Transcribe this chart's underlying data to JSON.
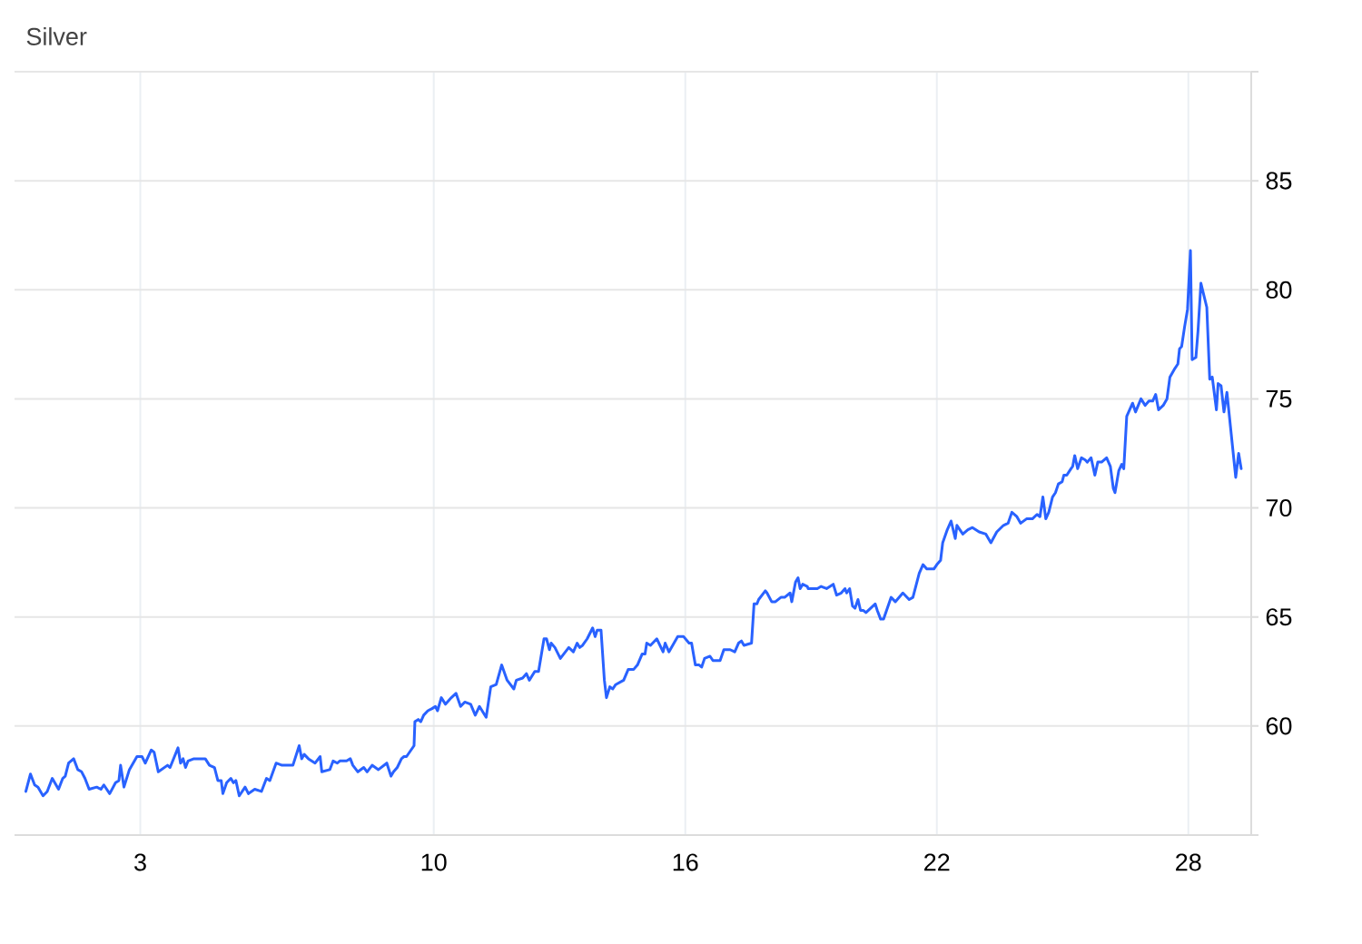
{
  "chart_data": {
    "type": "line",
    "title": "Silver",
    "color": "#2962ff",
    "grid": true,
    "xlim": [
      0,
      29.5
    ],
    "xticks": [
      3,
      10,
      16,
      22,
      28
    ],
    "ylim": [
      55,
      90
    ],
    "yticks": [
      {
        "value": 55,
        "label": null
      },
      60,
      65,
      70,
      75,
      80,
      85,
      {
        "value": 90,
        "label": null
      }
    ],
    "x": [
      0.27,
      0.38,
      0.48,
      0.56,
      0.68,
      0.78,
      0.9,
      1.05,
      1.15,
      1.21,
      1.29,
      1.41,
      1.51,
      1.6,
      1.68,
      1.78,
      1.96,
      2.06,
      2.13,
      2.27,
      2.41,
      2.49,
      2.53,
      2.61,
      2.74,
      2.92,
      3.04,
      3.12,
      3.26,
      3.33,
      3.43,
      3.65,
      3.71,
      3.9,
      3.96,
      4.02,
      4.08,
      4.14,
      4.28,
      4.55,
      4.65,
      4.77,
      4.85,
      4.93,
      4.97,
      5.06,
      5.16,
      5.22,
      5.28,
      5.36,
      5.5,
      5.58,
      5.73,
      5.89,
      6.01,
      6.09,
      6.24,
      6.38,
      6.64,
      6.79,
      6.85,
      6.91,
      7.01,
      7.17,
      7.29,
      7.33,
      7.52,
      7.6,
      7.7,
      7.76,
      7.84,
      7.92,
      8.01,
      8.07,
      8.19,
      8.33,
      8.41,
      8.53,
      8.68,
      8.88,
      8.98,
      9.04,
      9.13,
      9.23,
      9.29,
      9.35,
      9.53,
      9.55,
      9.63,
      9.69,
      9.76,
      9.86,
      9.96,
      10.04,
      10.09,
      10.18,
      10.28,
      10.42,
      10.53,
      10.64,
      10.74,
      10.88,
      10.99,
      11.09,
      11.25,
      11.36,
      11.49,
      11.62,
      11.75,
      11.91,
      11.97,
      12.12,
      12.21,
      12.28,
      12.41,
      12.5,
      12.63,
      12.69,
      12.76,
      12.8,
      12.89,
      13.02,
      13.22,
      13.33,
      13.42,
      13.48,
      13.55,
      13.66,
      13.79,
      13.85,
      13.9,
      13.99,
      14.07,
      14.12,
      14.2,
      14.27,
      14.34,
      14.53,
      14.64,
      14.77,
      14.86,
      14.97,
      15.04,
      15.08,
      15.17,
      15.32,
      15.47,
      15.52,
      15.61,
      15.82,
      15.96,
      16.09,
      16.15,
      16.24,
      16.33,
      16.39,
      16.46,
      16.59,
      16.66,
      16.83,
      16.92,
      17.01,
      17.07,
      17.18,
      17.27,
      17.34,
      17.4,
      17.58,
      17.64,
      17.71,
      17.75,
      17.91,
      17.95,
      18.06,
      18.15,
      18.28,
      18.37,
      18.5,
      18.54,
      18.63,
      18.69,
      18.74,
      18.8,
      18.91,
      18.93,
      19.04,
      19.15,
      19.24,
      19.37,
      19.53,
      19.61,
      19.72,
      19.81,
      19.85,
      19.92,
      19.99,
      20.05,
      20.12,
      20.18,
      20.25,
      20.31,
      20.42,
      20.53,
      20.58,
      20.66,
      20.73,
      20.91,
      21.01,
      21.19,
      21.34,
      21.43,
      21.58,
      21.67,
      21.76,
      21.93,
      22.0,
      22.09,
      22.14,
      22.25,
      22.34,
      22.44,
      22.48,
      22.62,
      22.74,
      22.85,
      23.01,
      23.17,
      23.29,
      23.43,
      23.59,
      23.7,
      23.79,
      23.91,
      24.0,
      24.14,
      24.28,
      24.39,
      24.46,
      24.53,
      24.6,
      24.67,
      24.76,
      24.83,
      24.9,
      24.99,
      25.03,
      25.1,
      25.2,
      25.24,
      25.29,
      25.36,
      25.45,
      25.54,
      25.59,
      25.68,
      25.77,
      25.84,
      25.93,
      26.05,
      26.14,
      26.21,
      26.25,
      26.34,
      26.41,
      26.46,
      26.53,
      26.6,
      26.67,
      26.74,
      26.87,
      26.97,
      27.06,
      27.15,
      27.22,
      27.29,
      27.4,
      27.49,
      27.56,
      27.68,
      27.75,
      27.79,
      27.84,
      27.91,
      27.98,
      28.05,
      28.09,
      28.18,
      28.23,
      28.3,
      28.44,
      28.51,
      28.57,
      28.67,
      28.71,
      28.78,
      28.85,
      28.92,
      29.13,
      29.2,
      29.26
    ],
    "values": [
      57.0,
      57.8,
      57.3,
      57.2,
      56.8,
      57.0,
      57.6,
      57.1,
      57.6,
      57.7,
      58.3,
      58.5,
      58.0,
      57.9,
      57.6,
      57.1,
      57.2,
      57.1,
      57.3,
      56.9,
      57.4,
      57.5,
      58.2,
      57.2,
      58.0,
      58.6,
      58.6,
      58.3,
      58.9,
      58.8,
      57.9,
      58.2,
      58.1,
      59.0,
      58.3,
      58.5,
      58.1,
      58.4,
      58.5,
      58.5,
      58.2,
      58.1,
      57.5,
      57.5,
      56.9,
      57.4,
      57.6,
      57.4,
      57.5,
      56.8,
      57.2,
      56.9,
      57.1,
      57.0,
      57.6,
      57.5,
      58.3,
      58.2,
      58.2,
      59.1,
      58.5,
      58.7,
      58.5,
      58.3,
      58.6,
      57.9,
      58.0,
      58.4,
      58.3,
      58.4,
      58.4,
      58.4,
      58.5,
      58.2,
      57.9,
      58.1,
      57.9,
      58.2,
      58.0,
      58.3,
      57.7,
      57.9,
      58.1,
      58.5,
      58.6,
      58.6,
      59.1,
      60.2,
      60.3,
      60.2,
      60.5,
      60.7,
      60.8,
      60.9,
      60.7,
      61.3,
      61.0,
      61.3,
      61.5,
      60.9,
      61.1,
      61.0,
      60.5,
      60.9,
      60.4,
      61.8,
      61.9,
      62.8,
      62.1,
      61.7,
      62.1,
      62.2,
      62.4,
      62.1,
      62.5,
      62.5,
      64.0,
      64.0,
      63.5,
      63.8,
      63.6,
      63.1,
      63.6,
      63.4,
      63.8,
      63.6,
      63.7,
      64.0,
      64.5,
      64.1,
      64.4,
      64.4,
      62.1,
      61.3,
      61.8,
      61.7,
      61.9,
      62.1,
      62.6,
      62.6,
      62.8,
      63.3,
      63.3,
      63.8,
      63.7,
      64.0,
      63.4,
      63.8,
      63.4,
      64.1,
      64.1,
      63.8,
      63.8,
      62.8,
      62.8,
      62.7,
      63.1,
      63.2,
      63.0,
      63.0,
      63.5,
      63.5,
      63.5,
      63.4,
      63.8,
      63.9,
      63.7,
      63.8,
      65.6,
      65.6,
      65.8,
      66.2,
      66.1,
      65.7,
      65.7,
      65.9,
      65.9,
      66.1,
      65.7,
      66.6,
      66.8,
      66.3,
      66.5,
      66.4,
      66.3,
      66.3,
      66.3,
      66.4,
      66.3,
      66.5,
      66.0,
      66.1,
      66.3,
      66.1,
      66.3,
      65.5,
      65.4,
      65.8,
      65.3,
      65.3,
      65.2,
      65.4,
      65.6,
      65.3,
      64.9,
      64.9,
      65.9,
      65.7,
      66.1,
      65.8,
      65.9,
      67.0,
      67.4,
      67.2,
      67.2,
      67.4,
      67.6,
      68.4,
      69.0,
      69.4,
      68.6,
      69.2,
      68.8,
      69.0,
      69.1,
      68.9,
      68.8,
      68.4,
      68.9,
      69.2,
      69.3,
      69.8,
      69.6,
      69.3,
      69.5,
      69.5,
      69.7,
      69.6,
      70.5,
      69.5,
      69.8,
      70.5,
      70.7,
      71.1,
      71.2,
      71.5,
      71.5,
      71.8,
      71.9,
      72.4,
      71.8,
      72.3,
      72.2,
      72.1,
      72.3,
      71.5,
      72.1,
      72.1,
      72.3,
      71.9,
      70.9,
      70.7,
      71.7,
      72.0,
      71.8,
      74.2,
      74.5,
      74.8,
      74.4,
      75.0,
      74.7,
      74.9,
      74.9,
      75.2,
      74.5,
      74.7,
      75.0,
      76.0,
      76.4,
      76.6,
      77.3,
      77.4,
      78.3,
      79.1,
      81.8,
      76.8,
      76.9,
      78.1,
      80.3,
      79.2,
      75.9,
      76.0,
      74.5,
      75.7,
      75.6,
      74.4,
      75.3,
      71.4,
      72.5,
      71.8
    ]
  }
}
